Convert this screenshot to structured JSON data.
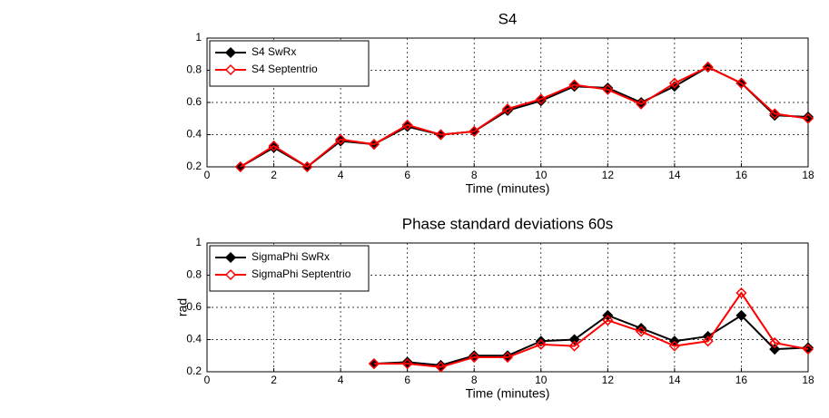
{
  "chart_data": [
    {
      "type": "line",
      "title": "S4",
      "xlabel": "Time (minutes)",
      "x": [
        1,
        2,
        3,
        4,
        5,
        6,
        7,
        8,
        9,
        10,
        11,
        12,
        13,
        14,
        15,
        16,
        17,
        18
      ],
      "series": [
        {
          "name": "S4 SwRx",
          "color": "#000000",
          "marker": "filled-diamond",
          "values": [
            0.2,
            0.32,
            0.2,
            0.36,
            0.34,
            0.45,
            0.4,
            0.42,
            0.55,
            0.61,
            0.7,
            0.69,
            0.6,
            0.7,
            0.82,
            0.72,
            0.52,
            0.51
          ]
        },
        {
          "name": "S4 Septentrio",
          "color": "#ff0000",
          "marker": "open-diamond",
          "values": [
            0.2,
            0.33,
            0.2,
            0.37,
            0.34,
            0.46,
            0.4,
            0.42,
            0.56,
            0.62,
            0.71,
            0.68,
            0.59,
            0.72,
            0.82,
            0.72,
            0.53,
            0.5
          ]
        }
      ],
      "xlim": [
        0,
        18
      ],
      "xticks": [
        0,
        2,
        4,
        6,
        8,
        10,
        12,
        14,
        16,
        18
      ],
      "ylim": [
        0.2,
        1
      ],
      "yticks": [
        0.2,
        0.4,
        0.6,
        0.8,
        1
      ],
      "grid": true,
      "legend": "upper left"
    },
    {
      "type": "line",
      "title": "Phase standard deviations 60s",
      "xlabel": "Time (minutes)",
      "ylabel": "rad",
      "x": [
        5,
        6,
        7,
        8,
        9,
        10,
        11,
        12,
        13,
        14,
        15,
        16,
        17,
        18
      ],
      "series": [
        {
          "name": "SigmaPhi SwRx",
          "color": "#000000",
          "marker": "filled-diamond",
          "values": [
            0.25,
            0.26,
            0.24,
            0.3,
            0.3,
            0.39,
            0.4,
            0.55,
            0.47,
            0.39,
            0.42,
            0.55,
            0.34,
            0.35
          ]
        },
        {
          "name": "SigmaPhi Septentrio",
          "color": "#ff0000",
          "marker": "open-diamond",
          "values": [
            0.25,
            0.25,
            0.23,
            0.29,
            0.29,
            0.37,
            0.36,
            0.52,
            0.45,
            0.36,
            0.39,
            0.69,
            0.38,
            0.34
          ]
        }
      ],
      "xlim": [
        0,
        18
      ],
      "xticks": [
        0,
        2,
        4,
        6,
        8,
        10,
        12,
        14,
        16,
        18
      ],
      "ylim": [
        0.2,
        1
      ],
      "yticks": [
        0.2,
        0.4,
        0.6,
        0.8,
        1
      ],
      "grid": true,
      "legend": "upper left"
    }
  ]
}
